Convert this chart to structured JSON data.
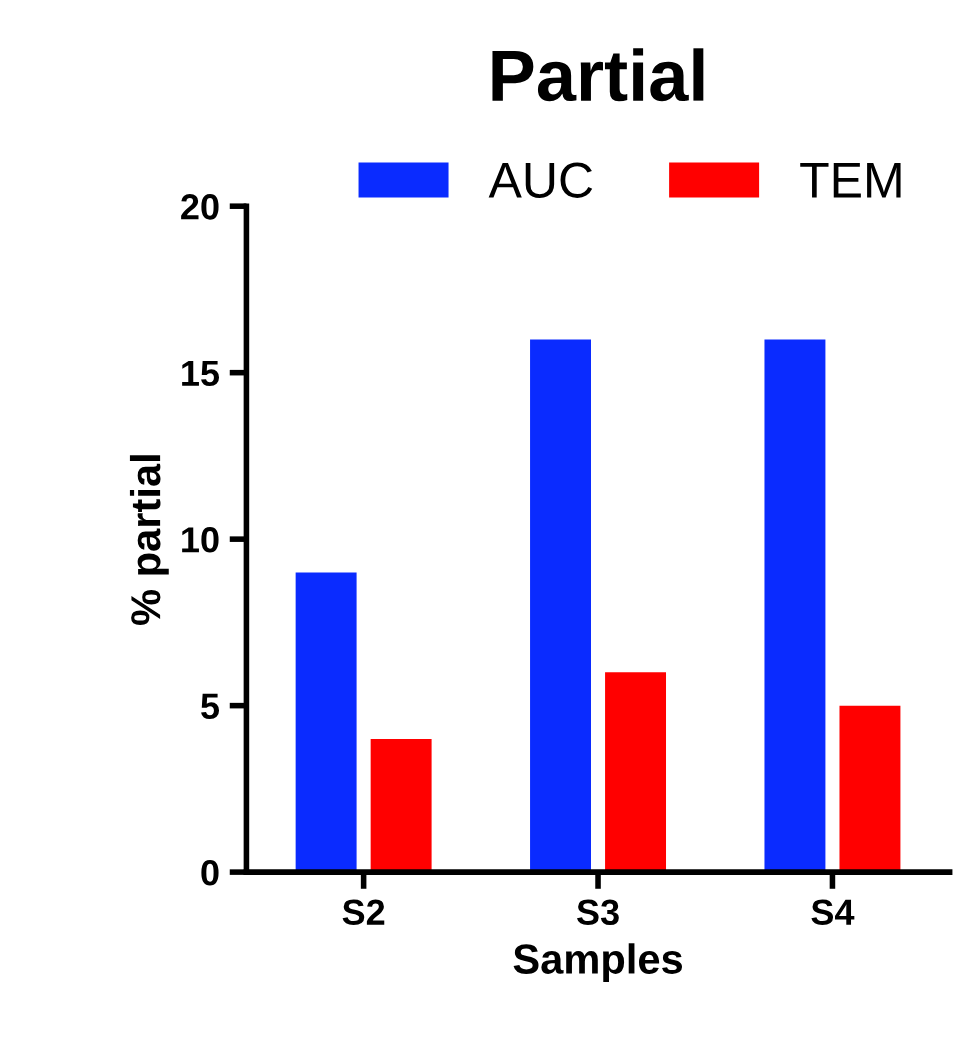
{
  "chart_data": {
    "type": "bar",
    "title": "Partial",
    "xlabel": "Samples",
    "ylabel": "% partial",
    "categories": [
      "S2",
      "S3",
      "S4"
    ],
    "series": [
      {
        "name": "AUC",
        "color": "#0a2bff",
        "values": [
          9,
          16,
          16
        ]
      },
      {
        "name": "TEM",
        "color": "#ff0000",
        "values": [
          4,
          6,
          5
        ]
      }
    ],
    "ylim": [
      0,
      20
    ],
    "yticks": [
      0,
      5,
      10,
      15,
      20
    ],
    "grid": false,
    "legend": "top right"
  }
}
